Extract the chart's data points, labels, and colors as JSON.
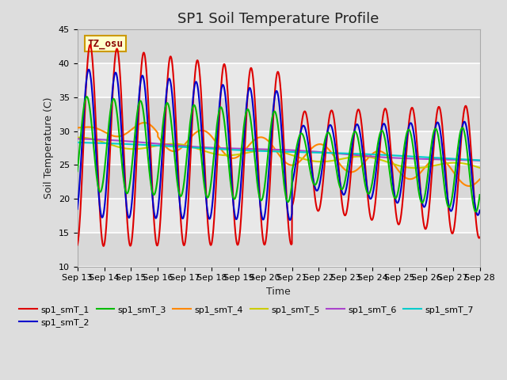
{
  "title": "SP1 Soil Temperature Profile",
  "xlabel": "Time",
  "ylabel": "Soil Temperature (C)",
  "ylim": [
    10,
    45
  ],
  "annotation_text": "TZ_osu",
  "annotation_color": "#880000",
  "annotation_bg": "#ffffcc",
  "annotation_border": "#cc9900",
  "series_colors": {
    "sp1_smT_1": "#dd0000",
    "sp1_smT_2": "#0000cc",
    "sp1_smT_3": "#00bb00",
    "sp1_smT_4": "#ff8800",
    "sp1_smT_5": "#cccc00",
    "sp1_smT_6": "#aa44cc",
    "sp1_smT_7": "#00cccc"
  },
  "background_color": "#dddddd",
  "plot_bg_color": "#eeeeee",
  "grid_color": "#ffffff",
  "x_tick_labels": [
    "Sep 13",
    "Sep 14",
    "Sep 15",
    "Sep 16",
    "Sep 17",
    "Sep 18",
    "Sep 19",
    "Sep 20",
    "Sep 21",
    "Sep 22",
    "Sep 23",
    "Sep 24",
    "Sep 25",
    "Sep 26",
    "Sep 27",
    "Sep 28"
  ],
  "title_fontsize": 13,
  "label_fontsize": 9,
  "tick_fontsize": 8,
  "legend_fontsize": 8
}
